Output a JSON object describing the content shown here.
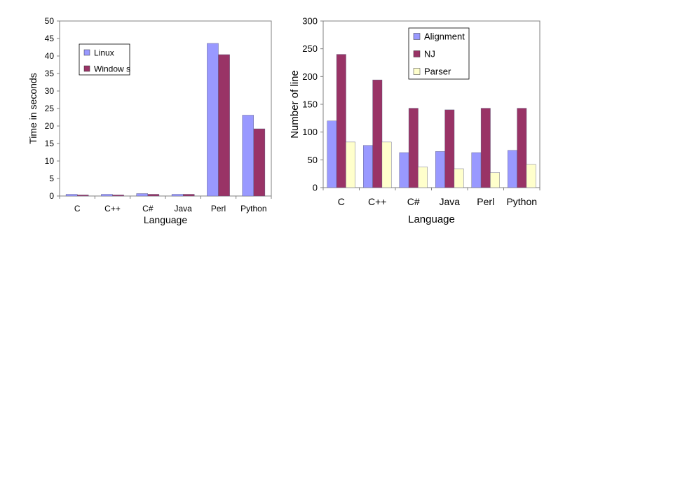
{
  "chart_data": [
    {
      "type": "bar",
      "title": "",
      "xlabel": "Language",
      "ylabel": "Time in seconds",
      "categories": [
        "C",
        "C++",
        "C#",
        "Java",
        "Perl",
        "Python"
      ],
      "ylim": [
        0,
        50
      ],
      "yticks": [
        0,
        5,
        10,
        15,
        20,
        25,
        30,
        35,
        40,
        45,
        50
      ],
      "grid": false,
      "legend_position": "top-left",
      "series": [
        {
          "name": "Linux",
          "color": "#9999ff",
          "values": [
            0.5,
            0.5,
            0.7,
            0.5,
            43.6,
            23.1
          ]
        },
        {
          "name": "Window s",
          "color": "#993366",
          "values": [
            0.3,
            0.3,
            0.5,
            0.5,
            40.4,
            19.2
          ]
        }
      ]
    },
    {
      "type": "bar",
      "title": "",
      "xlabel": "Language",
      "ylabel": "Number of line",
      "categories": [
        "C",
        "C++",
        "C#",
        "Java",
        "Perl",
        "Python"
      ],
      "ylim": [
        0,
        300
      ],
      "yticks": [
        0,
        50,
        100,
        150,
        200,
        250,
        300
      ],
      "grid": false,
      "legend_position": "top-left",
      "series": [
        {
          "name": "Alignment",
          "color": "#9999ff",
          "values": [
            120,
            76,
            63,
            65,
            63,
            67
          ]
        },
        {
          "name": "NJ",
          "color": "#993366",
          "values": [
            240,
            194,
            143,
            140,
            143,
            143
          ]
        },
        {
          "name": "Parser",
          "color": "#ffffcc",
          "values": [
            82,
            82,
            37,
            34,
            27,
            42
          ]
        }
      ]
    }
  ]
}
